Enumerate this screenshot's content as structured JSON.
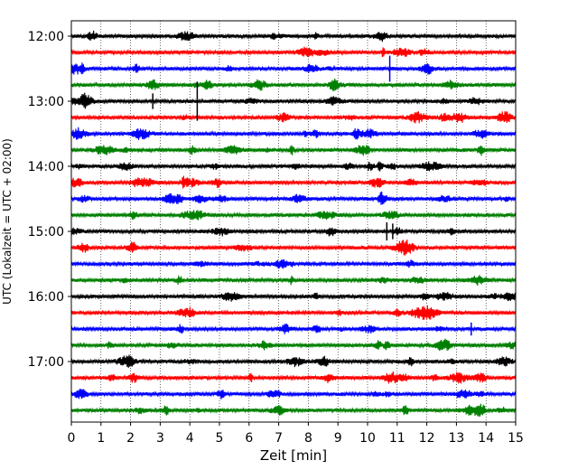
{
  "chart_data": {
    "type": "line",
    "title": "",
    "xlabel": "Zeit  [min]",
    "ylabel": "UTC (Lokalzeit = UTC + 02:00)",
    "xlim": [
      0,
      15
    ],
    "x_ticks": [
      0,
      1,
      2,
      3,
      4,
      5,
      6,
      7,
      8,
      9,
      10,
      11,
      12,
      13,
      14,
      15
    ],
    "x_tick_labels": [
      "0",
      "1",
      "2",
      "3",
      "4",
      "5",
      "6",
      "7",
      "8",
      "9",
      "10",
      "11",
      "12",
      "13",
      "14",
      "15"
    ],
    "y_tick_labels": [
      "12:00",
      "13:00",
      "14:00",
      "15:00",
      "16:00",
      "17:00"
    ],
    "grid": "vertical dotted",
    "trace_minutes_per_line": 15,
    "traces": [
      {
        "start": "12:00",
        "color": "#000000"
      },
      {
        "start": "12:15",
        "color": "#ff0000"
      },
      {
        "start": "12:30",
        "color": "#0000ff"
      },
      {
        "start": "12:45",
        "color": "#008000"
      },
      {
        "start": "13:00",
        "color": "#000000"
      },
      {
        "start": "13:15",
        "color": "#ff0000"
      },
      {
        "start": "13:30",
        "color": "#0000ff"
      },
      {
        "start": "13:45",
        "color": "#008000"
      },
      {
        "start": "14:00",
        "color": "#000000"
      },
      {
        "start": "14:15",
        "color": "#ff0000"
      },
      {
        "start": "14:30",
        "color": "#0000ff"
      },
      {
        "start": "14:45",
        "color": "#008000"
      },
      {
        "start": "15:00",
        "color": "#000000"
      },
      {
        "start": "15:15",
        "color": "#ff0000"
      },
      {
        "start": "15:30",
        "color": "#0000ff"
      },
      {
        "start": "15:45",
        "color": "#008000"
      },
      {
        "start": "16:00",
        "color": "#000000"
      },
      {
        "start": "16:15",
        "color": "#ff0000"
      },
      {
        "start": "16:30",
        "color": "#0000ff"
      },
      {
        "start": "16:45",
        "color": "#008000"
      },
      {
        "start": "17:00",
        "color": "#000000"
      },
      {
        "start": "17:15",
        "color": "#ff0000"
      },
      {
        "start": "17:30",
        "color": "#0000ff"
      },
      {
        "start": "17:45",
        "color": "#008000"
      }
    ],
    "spikes": [
      {
        "trace": 2,
        "x": 10.75,
        "amplitude": 1.0
      },
      {
        "trace": 4,
        "x": 2.75,
        "amplitude": 0.6
      },
      {
        "trace": 4,
        "x": 4.25,
        "amplitude": 1.5
      },
      {
        "trace": 12,
        "x": 10.65,
        "amplitude": 0.7
      },
      {
        "trace": 12,
        "x": 10.85,
        "amplitude": 0.6
      },
      {
        "trace": 18,
        "x": 13.5,
        "amplitude": 0.5
      }
    ]
  }
}
